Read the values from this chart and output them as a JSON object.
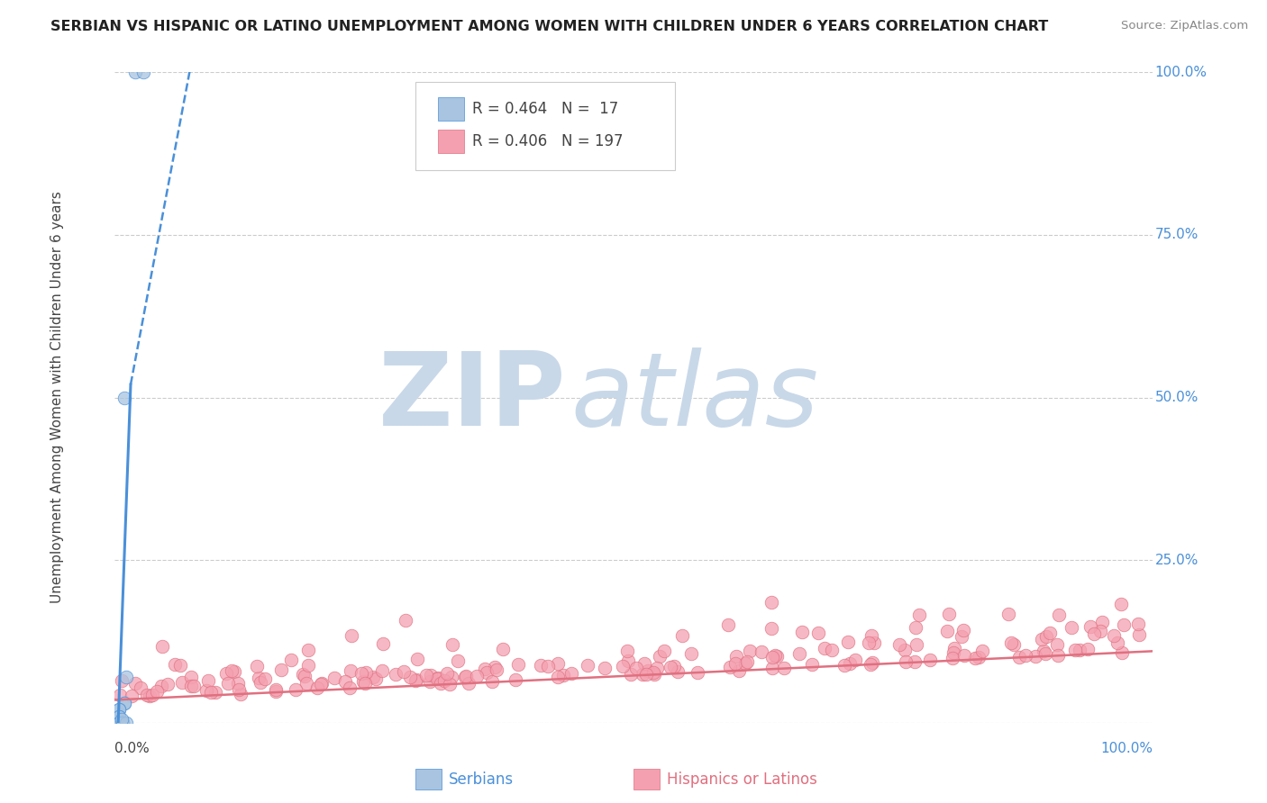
{
  "title": "SERBIAN VS HISPANIC OR LATINO UNEMPLOYMENT AMONG WOMEN WITH CHILDREN UNDER 6 YEARS CORRELATION CHART",
  "source": "Source: ZipAtlas.com",
  "ylabel": "Unemployment Among Women with Children Under 6 years",
  "legend_serbian_R": "0.464",
  "legend_serbian_N": "17",
  "legend_hispanic_R": "0.406",
  "legend_hispanic_N": "197",
  "serbian_color": "#a8c4e0",
  "hispanic_color": "#f4a0b0",
  "serbian_line_color": "#4a90d9",
  "hispanic_line_color": "#e07080",
  "right_label_color": "#4a90d9",
  "watermark_zip": "ZIP",
  "watermark_atlas": "atlas",
  "watermark_color": "#c8d8e8",
  "background_color": "#ffffff",
  "grid_color": "#cccccc",
  "title_color": "#222222",
  "source_color": "#888888",
  "label_color": "#444444"
}
